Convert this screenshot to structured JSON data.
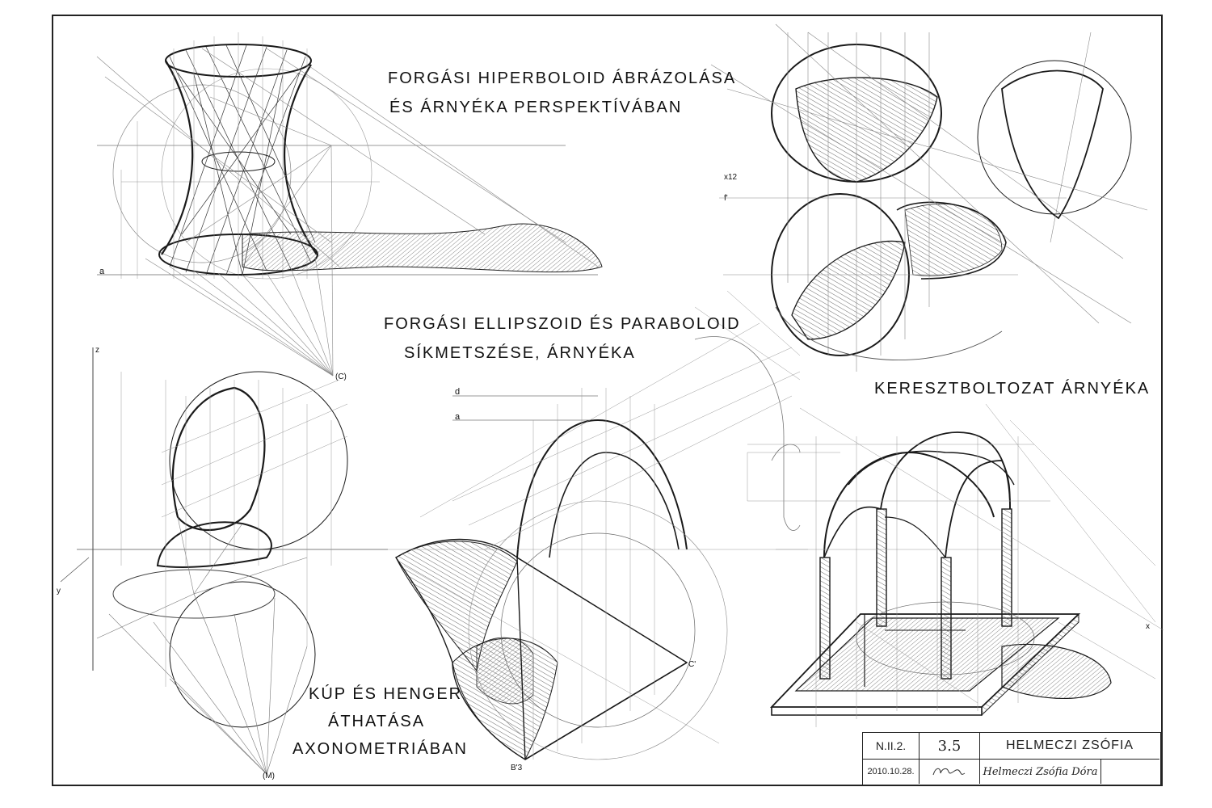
{
  "titles": {
    "hyperboloid_line1": "FORGÁSI HIPERBOLOID ÁBRÁZOLÁSA",
    "hyperboloid_line2": "ÉS ÁRNYÉKA PERSPEKTÍVÁBAN",
    "ellipsoid_line1": "FORGÁSI ELLIPSZOID ÉS PARABOLOID",
    "ellipsoid_line2": "SÍKMETSZÉSE, ÁRNYÉKA",
    "vault": "KERESZTBOLTOZAT ÁRNYÉKA",
    "cone_line1": "KÚP ÉS HENGER",
    "cone_line2": "ÁTHATÁSA",
    "cone_line3": "AXONOMETRIÁBAN"
  },
  "title_block": {
    "code": "N.II.2.",
    "grade": "3.5",
    "name": "HELMECZI ZSÓFIA",
    "date": "2010.10.28.",
    "signature": "Helmeczi Zsófia Dóra"
  },
  "annotations": {
    "label_a": "a",
    "label_d": "d",
    "label_C": "(C)",
    "label_M": "(M)",
    "label_Cprime": "C'",
    "label_B3": "B'3",
    "label_f1": "f'",
    "label_x12": "x12",
    "label_z": "z",
    "label_y": "y",
    "label_x": "x"
  },
  "colors": {
    "ink": "#1a1a1a",
    "construction": "#8a8a8a",
    "hatch": "#555555",
    "paper": "#ffffff"
  }
}
